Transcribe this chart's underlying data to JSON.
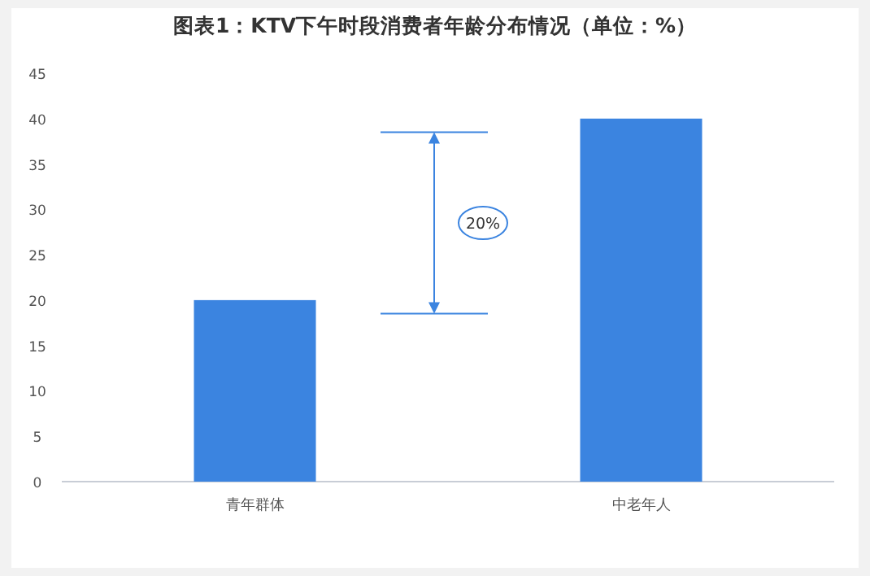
{
  "chart_data": {
    "type": "bar",
    "title": "图表1：KTV下午时段消费者年龄分布情况（单位：%）",
    "categories": [
      "青年群体",
      "中老年人"
    ],
    "values": [
      20,
      40
    ],
    "color": "#3b84e0",
    "ylim": [
      0,
      45
    ],
    "yticks": [
      0,
      5,
      10,
      15,
      20,
      25,
      30,
      35,
      40,
      45
    ],
    "grid": false,
    "annotations": [
      "20%"
    ]
  }
}
